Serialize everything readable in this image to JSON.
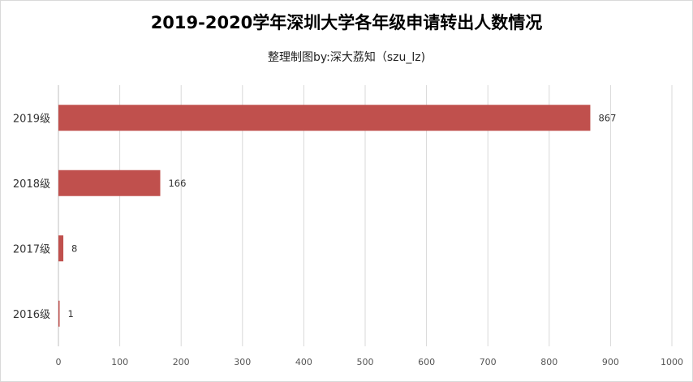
{
  "chart_data": {
    "type": "bar",
    "orientation": "horizontal",
    "title": "2019-2020学年深圳大学各年级申请转出人数情况",
    "subtitle": "整理制图by:深大荔知（szu_lz)",
    "categories": [
      "2019级",
      "2018级",
      "2017级",
      "2016级"
    ],
    "values": [
      867,
      166,
      8,
      1
    ],
    "xlim": [
      0,
      1000
    ],
    "xticks": [
      0,
      100,
      200,
      300,
      400,
      500,
      600,
      700,
      800,
      900,
      1000
    ],
    "bar_color": "#c0504d",
    "grid": true,
    "legend": "none"
  }
}
